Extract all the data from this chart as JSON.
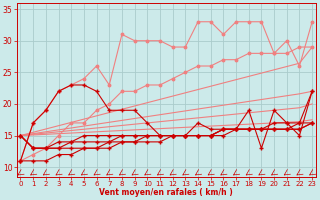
{
  "title": "",
  "xlabel": "Vent moyen/en rafales ( km/h )",
  "ylabel": "",
  "bg_color": "#cceaea",
  "grid_color": "#aacccc",
  "x": [
    0,
    1,
    2,
    3,
    4,
    5,
    6,
    7,
    8,
    9,
    10,
    11,
    12,
    13,
    14,
    15,
    16,
    17,
    18,
    19,
    20,
    21,
    22,
    23
  ],
  "straight1": [
    15,
    15.52,
    16.04,
    16.56,
    17.08,
    17.6,
    18.12,
    18.64,
    19.16,
    19.68,
    20.2,
    20.72,
    21.24,
    21.76,
    22.28,
    22.8,
    23.32,
    23.84,
    24.36,
    24.88,
    25.4,
    25.92,
    26.44,
    29
  ],
  "straight2": [
    15,
    15.3,
    15.6,
    15.9,
    16.2,
    16.5,
    16.8,
    17.1,
    17.4,
    17.7,
    18.0,
    18.3,
    18.6,
    18.9,
    19.2,
    19.5,
    19.8,
    20.1,
    20.4,
    20.7,
    21.0,
    21.3,
    21.6,
    22
  ],
  "straight3": [
    15,
    15.2,
    15.4,
    15.6,
    15.8,
    16.0,
    16.2,
    16.4,
    16.6,
    16.8,
    17.0,
    17.2,
    17.4,
    17.6,
    17.8,
    18.0,
    18.2,
    18.4,
    18.6,
    18.8,
    19.0,
    19.2,
    19.4,
    20
  ],
  "straight4": [
    15,
    15.1,
    15.2,
    15.3,
    15.4,
    15.5,
    15.6,
    15.7,
    15.8,
    15.9,
    16.0,
    16.1,
    16.2,
    16.3,
    16.4,
    16.5,
    16.6,
    16.7,
    16.8,
    16.9,
    17.0,
    17.1,
    17.2,
    17.5
  ],
  "jagged_salmon1": [
    11,
    17,
    19,
    22,
    23,
    24,
    26,
    23,
    31,
    30,
    30,
    30,
    29,
    29,
    33,
    33,
    31,
    33,
    33,
    33,
    28,
    30,
    26,
    33
  ],
  "jagged_salmon2": [
    11,
    12,
    13,
    15,
    17,
    17,
    19,
    20,
    22,
    22,
    23,
    23,
    24,
    25,
    26,
    26,
    27,
    27,
    28,
    28,
    28,
    28,
    29,
    29
  ],
  "jagged_dark1": [
    11,
    17,
    19,
    22,
    23,
    23,
    22,
    19,
    19,
    19,
    17,
    15,
    15,
    15,
    17,
    16,
    16,
    16,
    19,
    13,
    19,
    17,
    15,
    22
  ],
  "jagged_dark2": [
    15,
    13,
    13,
    14,
    14,
    15,
    15,
    15,
    15,
    15,
    15,
    15,
    15,
    15,
    15,
    15,
    16,
    16,
    16,
    16,
    16,
    16,
    16,
    17
  ],
  "jagged_dark3": [
    15,
    13,
    13,
    13,
    14,
    14,
    14,
    14,
    15,
    15,
    15,
    15,
    15,
    15,
    15,
    15,
    15,
    16,
    16,
    16,
    16,
    16,
    16,
    17
  ],
  "jagged_dark4": [
    11,
    11,
    11,
    12,
    12,
    13,
    13,
    13,
    14,
    14,
    14,
    14,
    15,
    15,
    15,
    15,
    16,
    16,
    16,
    16,
    16,
    16,
    17,
    17
  ],
  "jagged_dark5": [
    15,
    13,
    13,
    13,
    13,
    13,
    13,
    14,
    14,
    14,
    15,
    15,
    15,
    15,
    15,
    15,
    16,
    16,
    16,
    16,
    17,
    17,
    17,
    22
  ],
  "color_salmon": "#f08080",
  "color_dark": "#cc0000",
  "color_arrow": "#cc0000",
  "yticks": [
    10,
    15,
    20,
    25,
    30,
    35
  ],
  "xticks": [
    0,
    1,
    2,
    3,
    4,
    5,
    6,
    7,
    8,
    9,
    10,
    11,
    12,
    13,
    14,
    15,
    16,
    17,
    18,
    19,
    20,
    21,
    22,
    23
  ],
  "ylim": [
    8.5,
    36
  ],
  "xlim": [
    -0.3,
    23.3
  ]
}
